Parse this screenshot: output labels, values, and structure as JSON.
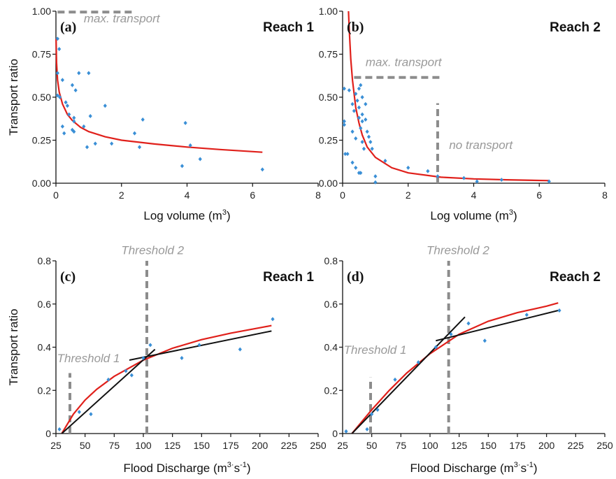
{
  "colors": {
    "points": "#3a8fd6",
    "fit": "#e0201b",
    "segments": "#111111",
    "annotation": "#999999"
  },
  "chart_data": [
    {
      "id": "a",
      "type": "scatter",
      "panel_label": "(a)",
      "title": "Reach 1",
      "xlabel": "Log volume (m",
      "xlabel_sup": "3",
      "xlabel_end": ")",
      "ylabel": "Transport ratio",
      "xlim": [
        0,
        8
      ],
      "ylim": [
        0,
        1.0
      ],
      "xticks": [
        0,
        2,
        4,
        6,
        8
      ],
      "xtick_labels": [
        "0",
        "2",
        "4",
        "6",
        "8"
      ],
      "yticks": [
        0,
        0.25,
        0.5,
        0.75,
        1.0
      ],
      "ytick_labels": [
        "0.00",
        "0.25",
        "0.50",
        "0.75",
        "1.00"
      ],
      "points": [
        [
          0.05,
          0.84
        ],
        [
          0.1,
          0.78
        ],
        [
          0.05,
          0.64
        ],
        [
          0.05,
          0.51
        ],
        [
          0.12,
          0.5
        ],
        [
          0.2,
          0.6
        ],
        [
          0.3,
          0.47
        ],
        [
          0.35,
          0.45
        ],
        [
          0.2,
          0.33
        ],
        [
          0.25,
          0.29
        ],
        [
          0.4,
          0.4
        ],
        [
          0.5,
          0.31
        ],
        [
          0.55,
          0.3
        ],
        [
          0.55,
          0.36
        ],
        [
          0.5,
          0.57
        ],
        [
          0.6,
          0.54
        ],
        [
          0.7,
          0.64
        ],
        [
          0.55,
          0.38
        ],
        [
          0.85,
          0.33
        ],
        [
          0.95,
          0.21
        ],
        [
          1.0,
          0.64
        ],
        [
          1.05,
          0.39
        ],
        [
          1.2,
          0.23
        ],
        [
          1.5,
          0.45
        ],
        [
          1.7,
          0.23
        ],
        [
          2.4,
          0.29
        ],
        [
          2.55,
          0.21
        ],
        [
          2.65,
          0.37
        ],
        [
          3.85,
          0.1
        ],
        [
          3.95,
          0.35
        ],
        [
          4.1,
          0.22
        ],
        [
          4.4,
          0.14
        ],
        [
          6.3,
          0.08
        ]
      ],
      "fit_curve": [
        [
          0.005,
          0.84
        ],
        [
          0.02,
          0.7
        ],
        [
          0.05,
          0.6
        ],
        [
          0.1,
          0.53
        ],
        [
          0.2,
          0.46
        ],
        [
          0.35,
          0.4
        ],
        [
          0.5,
          0.365
        ],
        [
          0.75,
          0.325
        ],
        [
          1.0,
          0.3
        ],
        [
          1.5,
          0.27
        ],
        [
          2.0,
          0.25
        ],
        [
          3.0,
          0.228
        ],
        [
          4.0,
          0.21
        ],
        [
          5.0,
          0.196
        ],
        [
          6.3,
          0.18
        ]
      ],
      "dashed_lines": [
        {
          "x": [
            0.05,
            2.4
          ],
          "y": [
            0.995,
            0.995
          ]
        }
      ],
      "annotations": [
        {
          "text": "max. transport",
          "x": 0.85,
          "y": 0.935
        }
      ]
    },
    {
      "id": "b",
      "type": "scatter",
      "panel_label": "(b)",
      "title": "Reach 2",
      "xlabel": "Log volume (m",
      "xlabel_sup": "3",
      "xlabel_end": ")",
      "ylabel": "",
      "xlim": [
        0,
        8
      ],
      "ylim": [
        0,
        1.0
      ],
      "xticks": [
        0,
        2,
        4,
        6,
        8
      ],
      "xtick_labels": [
        "0",
        "2",
        "4",
        "6",
        "8"
      ],
      "yticks": [
        0,
        0.25,
        0.5,
        0.75,
        1.0
      ],
      "ytick_labels": [
        "0.00",
        "0.25",
        "0.50",
        "0.75",
        "1.00"
      ],
      "points": [
        [
          0.05,
          0.55
        ],
        [
          0.05,
          0.36
        ],
        [
          0.05,
          0.34
        ],
        [
          0.08,
          0.17
        ],
        [
          0.15,
          0.17
        ],
        [
          0.2,
          0.54
        ],
        [
          0.3,
          0.46
        ],
        [
          0.35,
          0.42
        ],
        [
          0.4,
          0.52
        ],
        [
          0.45,
          0.48
        ],
        [
          0.5,
          0.55
        ],
        [
          0.5,
          0.44
        ],
        [
          0.5,
          0.38
        ],
        [
          0.55,
          0.57
        ],
        [
          0.55,
          0.32
        ],
        [
          0.6,
          0.5
        ],
        [
          0.3,
          0.3
        ],
        [
          0.4,
          0.26
        ],
        [
          0.6,
          0.24
        ],
        [
          0.6,
          0.4
        ],
        [
          0.6,
          0.36
        ],
        [
          0.65,
          0.2
        ],
        [
          0.7,
          0.46
        ],
        [
          0.7,
          0.37
        ],
        [
          0.75,
          0.3
        ],
        [
          0.8,
          0.27
        ],
        [
          0.85,
          0.24
        ],
        [
          0.9,
          0.2
        ],
        [
          0.3,
          0.12
        ],
        [
          0.4,
          0.09
        ],
        [
          0.5,
          0.06
        ],
        [
          0.55,
          0.06
        ],
        [
          1.0,
          0.04
        ],
        [
          1.0,
          0.005
        ],
        [
          1.3,
          0.13
        ],
        [
          2.0,
          0.09
        ],
        [
          2.6,
          0.07
        ],
        [
          2.9,
          0.04
        ],
        [
          3.7,
          0.03
        ],
        [
          4.1,
          0.01
        ],
        [
          4.85,
          0.02
        ],
        [
          6.3,
          0.01
        ]
      ],
      "fit_curve": [
        [
          0.18,
          1.0
        ],
        [
          0.2,
          0.9
        ],
        [
          0.25,
          0.72
        ],
        [
          0.3,
          0.6
        ],
        [
          0.4,
          0.44
        ],
        [
          0.5,
          0.35
        ],
        [
          0.6,
          0.28
        ],
        [
          0.75,
          0.21
        ],
        [
          1.0,
          0.15
        ],
        [
          1.5,
          0.09
        ],
        [
          2.0,
          0.06
        ],
        [
          3.0,
          0.035
        ],
        [
          4.0,
          0.025
        ],
        [
          5.0,
          0.02
        ],
        [
          6.3,
          0.015
        ]
      ],
      "dashed_lines": [
        {
          "x": [
            0.35,
            3.05
          ],
          "y": [
            0.615,
            0.615
          ]
        },
        {
          "x": [
            2.9,
            2.9
          ],
          "y": [
            0.0,
            0.465
          ]
        }
      ],
      "annotations": [
        {
          "text": "max. transport",
          "x": 0.7,
          "y": 0.68
        },
        {
          "text": "no transport",
          "x": 3.25,
          "y": 0.2
        }
      ]
    },
    {
      "id": "c",
      "type": "scatter",
      "panel_label": "(c)",
      "title": "Reach 1",
      "xlabel": "Flood Discharge (m",
      "xlabel_sup": "3",
      "xlabel_mid": "s",
      "xlabel_sup2": "-1",
      "xlabel_end": ")",
      "ylabel": "Transport ratio",
      "xlim": [
        25,
        250
      ],
      "ylim": [
        0,
        0.8
      ],
      "xticks": [
        25,
        50,
        75,
        100,
        125,
        150,
        175,
        200,
        225,
        250
      ],
      "xtick_labels": [
        "25",
        "50",
        "75",
        "100",
        "125",
        "150",
        "175",
        "200",
        "225",
        "250"
      ],
      "yticks": [
        0,
        0.2,
        0.4,
        0.6,
        0.8
      ],
      "ytick_labels": [
        "0",
        "0.2",
        "0.4",
        "0.6",
        "0.8"
      ],
      "points": [
        [
          28,
          0.02
        ],
        [
          45,
          0.1
        ],
        [
          55,
          0.09
        ],
        [
          70,
          0.25
        ],
        [
          85,
          0.29
        ],
        [
          90,
          0.27
        ],
        [
          100,
          0.35
        ],
        [
          106,
          0.41
        ],
        [
          133,
          0.35
        ],
        [
          148,
          0.41
        ],
        [
          183,
          0.39
        ],
        [
          211,
          0.53
        ]
      ],
      "fit_curve": [
        [
          30,
          0.0
        ],
        [
          40,
          0.09
        ],
        [
          50,
          0.155
        ],
        [
          60,
          0.205
        ],
        [
          75,
          0.265
        ],
        [
          100,
          0.34
        ],
        [
          125,
          0.395
        ],
        [
          150,
          0.435
        ],
        [
          175,
          0.465
        ],
        [
          200,
          0.49
        ],
        [
          210,
          0.5
        ]
      ],
      "segments": [
        [
          [
            30,
            0.0
          ],
          [
            110,
            0.39
          ]
        ],
        [
          [
            88,
            0.34
          ],
          [
            210,
            0.475
          ]
        ]
      ],
      "dashed_lines": [
        {
          "x": [
            103,
            103
          ],
          "y": [
            0.0,
            0.8
          ]
        },
        {
          "x": [
            37,
            37
          ],
          "y": [
            0.0,
            0.28
          ]
        }
      ],
      "annotations": [
        {
          "text": "Threshold 1",
          "x": 26,
          "y": 0.33
        },
        {
          "text": "Threshold 2",
          "x": 81,
          "y": 0.83
        }
      ]
    },
    {
      "id": "d",
      "type": "scatter",
      "panel_label": "(d)",
      "title": "Reach 2",
      "xlabel": "Flood Discharge (m",
      "xlabel_sup": "3",
      "xlabel_mid": "s",
      "xlabel_sup2": "-1",
      "xlabel_end": ")",
      "ylabel": "",
      "xlim": [
        25,
        250
      ],
      "ylim": [
        0,
        0.8
      ],
      "xticks": [
        25,
        50,
        75,
        100,
        125,
        150,
        175,
        200,
        225,
        250
      ],
      "xtick_labels": [
        "25",
        "50",
        "75",
        "100",
        "125",
        "150",
        "175",
        "200",
        "225",
        "250"
      ],
      "yticks": [
        0,
        0.2,
        0.4,
        0.6,
        0.8
      ],
      "ytick_labels": [
        "0",
        "0.2",
        "0.4",
        "0.6",
        "0.8"
      ],
      "points": [
        [
          28,
          0.01
        ],
        [
          46,
          0.02
        ],
        [
          50,
          0.09
        ],
        [
          55,
          0.11
        ],
        [
          70,
          0.25
        ],
        [
          90,
          0.33
        ],
        [
          105,
          0.4
        ],
        [
          118,
          0.46
        ],
        [
          133,
          0.51
        ],
        [
          147,
          0.43
        ],
        [
          183,
          0.55
        ],
        [
          211,
          0.57
        ]
      ],
      "fit_curve": [
        [
          33,
          0.0
        ],
        [
          50,
          0.11
        ],
        [
          65,
          0.2
        ],
        [
          80,
          0.28
        ],
        [
          100,
          0.37
        ],
        [
          125,
          0.46
        ],
        [
          150,
          0.52
        ],
        [
          175,
          0.56
        ],
        [
          200,
          0.59
        ],
        [
          210,
          0.605
        ]
      ],
      "segments": [
        [
          [
            33,
            0.0
          ],
          [
            130,
            0.54
          ]
        ],
        [
          [
            105,
            0.43
          ],
          [
            210,
            0.57
          ]
        ]
      ],
      "dashed_lines": [
        {
          "x": [
            116,
            116
          ],
          "y": [
            0.0,
            0.8
          ]
        },
        {
          "x": [
            49,
            49
          ],
          "y": [
            0.0,
            0.26
          ]
        }
      ],
      "annotations": [
        {
          "text": "Threshold 1",
          "x": 26,
          "y": 0.37
        },
        {
          "text": "Threshold 2",
          "x": 97,
          "y": 0.83
        }
      ]
    }
  ]
}
